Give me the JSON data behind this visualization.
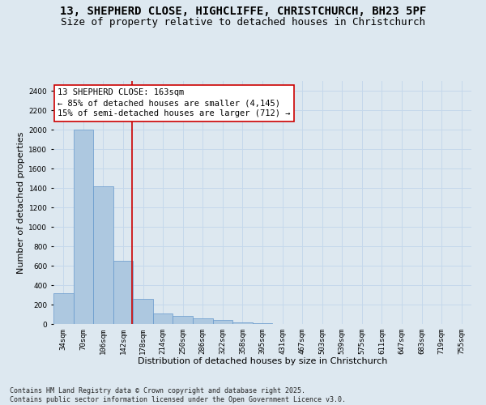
{
  "title_line1": "13, SHEPHERD CLOSE, HIGHCLIFFE, CHRISTCHURCH, BH23 5PF",
  "title_line2": "Size of property relative to detached houses in Christchurch",
  "xlabel": "Distribution of detached houses by size in Christchurch",
  "ylabel": "Number of detached properties",
  "categories": [
    "34sqm",
    "70sqm",
    "106sqm",
    "142sqm",
    "178sqm",
    "214sqm",
    "250sqm",
    "286sqm",
    "322sqm",
    "358sqm",
    "395sqm",
    "431sqm",
    "467sqm",
    "503sqm",
    "539sqm",
    "575sqm",
    "611sqm",
    "647sqm",
    "683sqm",
    "719sqm",
    "755sqm"
  ],
  "values": [
    320,
    2000,
    1420,
    650,
    260,
    110,
    80,
    60,
    40,
    20,
    10,
    0,
    0,
    0,
    0,
    0,
    0,
    0,
    0,
    0,
    0
  ],
  "bar_color": "#adc8e0",
  "bar_edge_color": "#6699cc",
  "grid_color": "#c5d8eb",
  "background_color": "#dde8f0",
  "vline_x_idx": 3.45,
  "vline_color": "#cc0000",
  "annotation_text_line1": "13 SHEPHERD CLOSE: 163sqm",
  "annotation_text_line2": "← 85% of detached houses are smaller (4,145)",
  "annotation_text_line3": "15% of semi-detached houses are larger (712) →",
  "annotation_box_color": "#cc0000",
  "annotation_bg": "#ffffff",
  "ylim": [
    0,
    2500
  ],
  "yticks": [
    0,
    200,
    400,
    600,
    800,
    1000,
    1200,
    1400,
    1600,
    1800,
    2000,
    2200,
    2400
  ],
  "footer_line1": "Contains HM Land Registry data © Crown copyright and database right 2025.",
  "footer_line2": "Contains public sector information licensed under the Open Government Licence v3.0.",
  "title_fontsize": 10,
  "subtitle_fontsize": 9,
  "axis_label_fontsize": 8,
  "tick_fontsize": 6.5,
  "annotation_fontsize": 7.5,
  "footer_fontsize": 6
}
